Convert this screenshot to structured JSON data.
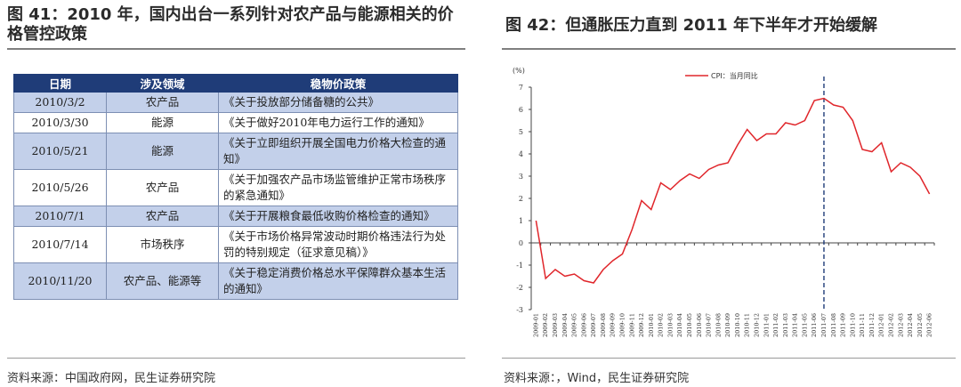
{
  "left": {
    "title": "图 41：2010 年，国内出台一系列针对农产品与能源相关的价格管控政策",
    "table": {
      "headers": [
        "日期",
        "涉及领域",
        "稳物价政策"
      ],
      "rows": [
        {
          "date": "2010/3/2",
          "domain": "农产品",
          "policy": "《关于投放部分储备糖的公共》"
        },
        {
          "date": "2010/3/30",
          "domain": "能源",
          "policy": "《关于做好2010年电力运行工作的通知》"
        },
        {
          "date": "2010/5/21",
          "domain": "能源",
          "policy": "《关于立即组织开展全国电力价格大检查的通知》"
        },
        {
          "date": "2010/5/26",
          "domain": "农产品",
          "policy": "《关于加强农产品市场监管维护正常市场秩序的紧急通知》"
        },
        {
          "date": "2010/7/1",
          "domain": "农产品",
          "policy": "《关于开展粮食最低收购价格检查的通知》"
        },
        {
          "date": "2010/7/14",
          "domain": "市场秩序",
          "policy": "《关于市场价格异常波动时期价格违法行为处罚的特别规定（征求意见稿）》"
        },
        {
          "date": "2010/11/20",
          "domain": "农产品、能源等",
          "policy": "《关于稳定消费价格总水平保障群众基本生活的通知》"
        }
      ]
    },
    "source": "资料来源：中国政府网，民生证券研究院"
  },
  "right": {
    "title": "图 42：但通胀压力直到 2011 年下半年才开始缓解",
    "source": "资料来源：，Wind，民生证券研究院"
  },
  "colors": {
    "header_bg": "#1f3c78",
    "row_shade": "#c3d0ea",
    "series_line": "#e0262b",
    "marker_line": "#1f3c78"
  },
  "chart_data": {
    "type": "line",
    "ylabel": "(%)",
    "ylim": [
      -3,
      7
    ],
    "yticks": [
      "-3",
      "-2",
      "-1",
      "0",
      "1",
      "2",
      "3",
      "4",
      "5",
      "6",
      "7"
    ],
    "legend_position": "top-center",
    "grid": false,
    "vline_category": "2011-07",
    "categories": [
      "2009-01",
      "2009-02",
      "2009-03",
      "2009-04",
      "2009-05",
      "2009-06",
      "2009-07",
      "2009-08",
      "2009-09",
      "2009-10",
      "2009-11",
      "2009-12",
      "2010-01",
      "2010-02",
      "2010-03",
      "2010-04",
      "2010-05",
      "2010-06",
      "2010-07",
      "2010-08",
      "2010-09",
      "2010-10",
      "2010-11",
      "2010-12",
      "2011-01",
      "2011-02",
      "2011-03",
      "2011-04",
      "2011-05",
      "2011-06",
      "2011-07",
      "2011-08",
      "2011-09",
      "2011-10",
      "2011-11",
      "2011-12",
      "2012-01",
      "2012-02",
      "2012-03",
      "2012-04",
      "2012-05",
      "2012-06"
    ],
    "series": [
      {
        "name": "CPI：当月同比",
        "values": [
          1.0,
          -1.6,
          -1.2,
          -1.5,
          -1.4,
          -1.7,
          -1.8,
          -1.2,
          -0.8,
          -0.5,
          0.6,
          1.9,
          1.5,
          2.7,
          2.4,
          2.8,
          3.1,
          2.9,
          3.3,
          3.5,
          3.6,
          4.4,
          5.1,
          4.6,
          4.9,
          4.9,
          5.4,
          5.3,
          5.5,
          6.4,
          6.5,
          6.2,
          6.1,
          5.5,
          4.2,
          4.1,
          4.5,
          3.2,
          3.6,
          3.4,
          3.0,
          2.2
        ]
      }
    ]
  }
}
